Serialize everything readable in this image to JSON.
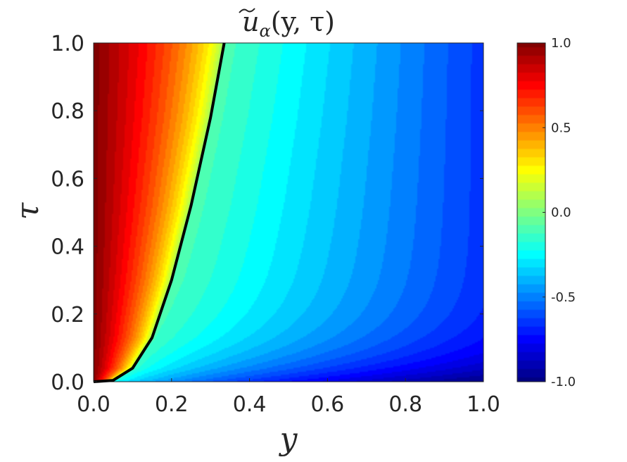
{
  "chart_data": {
    "type": "heatmap",
    "title_parts": {
      "base": "u",
      "subscript": "α",
      "args": "(y, τ)"
    },
    "xlabel": "y",
    "ylabel": "τ",
    "xlim": [
      0,
      1
    ],
    "ylim": [
      0,
      1
    ],
    "x_ticks": [
      "0.0",
      "0.2",
      "0.4",
      "0.6",
      "0.8",
      "1.0"
    ],
    "y_ticks": [
      "0.0",
      "0.2",
      "0.4",
      "0.6",
      "0.8",
      "1.0"
    ],
    "colorbar": {
      "range": [
        -1.0,
        1.0
      ],
      "colormap": "jet",
      "tick_values": [
        1.0,
        0.5,
        0.0,
        -0.5,
        -1.0
      ],
      "tick_labels": [
        "1.0",
        "0.5",
        "0.0",
        "-0.5",
        "-1.0"
      ]
    },
    "zero_contour": {
      "color": "#000000",
      "points": [
        {
          "y": 0.0,
          "tau": 0.0
        },
        {
          "y": 0.05,
          "tau": 0.004
        },
        {
          "y": 0.1,
          "tau": 0.04
        },
        {
          "y": 0.15,
          "tau": 0.13
        },
        {
          "y": 0.2,
          "tau": 0.3
        },
        {
          "y": 0.25,
          "tau": 0.52
        },
        {
          "y": 0.3,
          "tau": 0.78
        },
        {
          "y": 0.335,
          "tau": 1.0
        }
      ]
    }
  }
}
